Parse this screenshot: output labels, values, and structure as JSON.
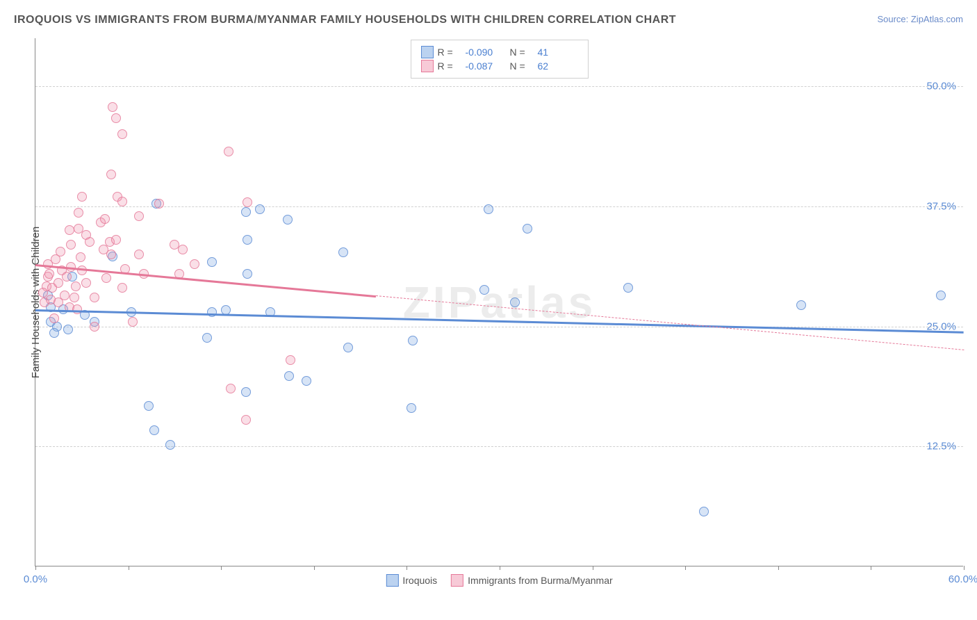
{
  "title": "IROQUOIS VS IMMIGRANTS FROM BURMA/MYANMAR FAMILY HOUSEHOLDS WITH CHILDREN CORRELATION CHART",
  "source": "Source: ZipAtlas.com",
  "watermark": "ZIPatlas",
  "chart": {
    "type": "scatter",
    "background_color": "#ffffff",
    "grid_color": "#d0d0d0",
    "y_axis_title": "Family Households with Children",
    "xlim": [
      0,
      60
    ],
    "ylim": [
      0,
      55
    ],
    "y_ticks": [
      12.5,
      25.0,
      37.5,
      50.0
    ],
    "y_tick_labels": [
      "12.5%",
      "25.0%",
      "37.5%",
      "50.0%"
    ],
    "x_ticks": [
      0,
      6,
      12,
      18,
      24,
      30,
      36,
      42,
      48,
      54,
      60
    ],
    "x_min_label": "0.0%",
    "x_max_label": "60.0%",
    "colors": {
      "blue_fill": "rgba(120,165,225,0.35)",
      "blue_stroke": "#5b8bd4",
      "pink_fill": "rgba(240,150,175,0.35)",
      "pink_stroke": "#e57898",
      "text_blue": "#4a7fd0"
    },
    "legend_top": {
      "rows": [
        {
          "swatch": "blue",
          "r_label": "R =",
          "r_value": "-0.090",
          "n_label": "N =",
          "n_value": "41"
        },
        {
          "swatch": "pink",
          "r_label": "R =",
          "r_value": "-0.087",
          "n_label": "N =",
          "n_value": "62"
        }
      ]
    },
    "legend_bottom": [
      {
        "swatch": "blue",
        "label": "Iroquois"
      },
      {
        "swatch": "pink",
        "label": "Immigrants from Burma/Myanmar"
      }
    ],
    "series": [
      {
        "name": "Iroquois",
        "color": "blue",
        "trend": {
          "x1": 0,
          "y1": 26.8,
          "x2": 60,
          "y2": 24.5,
          "solid_until_x": 60
        },
        "points": [
          [
            1,
            25.5
          ],
          [
            1.4,
            25
          ],
          [
            1,
            27
          ],
          [
            1.8,
            26.8
          ],
          [
            2.4,
            30.2
          ],
          [
            3.2,
            26.2
          ],
          [
            3.8,
            25.5
          ],
          [
            0.8,
            28.2
          ],
          [
            1.2,
            24.3
          ],
          [
            2.1,
            24.7
          ],
          [
            5,
            32.3
          ],
          [
            6.2,
            26.5
          ],
          [
            7.8,
            37.8
          ],
          [
            7.7,
            14.2
          ],
          [
            7.3,
            16.7
          ],
          [
            8.7,
            12.7
          ],
          [
            11.1,
            23.8
          ],
          [
            11.4,
            26.5
          ],
          [
            11.4,
            31.7
          ],
          [
            12.3,
            26.7
          ],
          [
            13.6,
            36.9
          ],
          [
            13.7,
            34.0
          ],
          [
            13.7,
            30.5
          ],
          [
            13.6,
            18.2
          ],
          [
            14.5,
            37.2
          ],
          [
            15.2,
            26.5
          ],
          [
            16.3,
            36.1
          ],
          [
            16.4,
            19.8
          ],
          [
            17.5,
            19.3
          ],
          [
            19.9,
            32.7
          ],
          [
            20.2,
            22.8
          ],
          [
            24.4,
            23.5
          ],
          [
            24.3,
            16.5
          ],
          [
            29.0,
            28.8
          ],
          [
            29.3,
            37.2
          ],
          [
            31.8,
            35.2
          ],
          [
            31.0,
            27.5
          ],
          [
            38.3,
            29.0
          ],
          [
            43.2,
            5.7
          ],
          [
            49.5,
            27.2
          ],
          [
            58.5,
            28.2
          ]
        ]
      },
      {
        "name": "Immigrants from Burma/Myanmar",
        "color": "pink",
        "trend": {
          "x1": 0,
          "y1": 31.5,
          "x2": 60,
          "y2": 22.6,
          "solid_until_x": 22
        },
        "points": [
          [
            0.6,
            27.5
          ],
          [
            0.7,
            29.2
          ],
          [
            0.8,
            30.2
          ],
          [
            0.5,
            28.5
          ],
          [
            1.0,
            27.8
          ],
          [
            1.1,
            29.0
          ],
          [
            0.9,
            30.5
          ],
          [
            1.3,
            32.0
          ],
          [
            0.8,
            31.5
          ],
          [
            1.5,
            29.5
          ],
          [
            1.5,
            27.5
          ],
          [
            1.2,
            25.8
          ],
          [
            1.7,
            30.8
          ],
          [
            1.6,
            32.8
          ],
          [
            1.9,
            28.2
          ],
          [
            2.0,
            30.2
          ],
          [
            2.2,
            27.0
          ],
          [
            2.2,
            35.0
          ],
          [
            2.3,
            33.5
          ],
          [
            2.3,
            31.2
          ],
          [
            2.6,
            29.2
          ],
          [
            2.5,
            28.0
          ],
          [
            2.7,
            26.8
          ],
          [
            2.8,
            35.2
          ],
          [
            2.8,
            36.8
          ],
          [
            2.9,
            32.2
          ],
          [
            3.0,
            30.8
          ],
          [
            3.0,
            38.5
          ],
          [
            3.3,
            34.5
          ],
          [
            3.3,
            29.5
          ],
          [
            3.5,
            33.8
          ],
          [
            3.8,
            28.0
          ],
          [
            3.8,
            25.0
          ],
          [
            4.2,
            35.8
          ],
          [
            4.4,
            33.0
          ],
          [
            4.5,
            36.2
          ],
          [
            4.6,
            30.0
          ],
          [
            4.9,
            40.8
          ],
          [
            4.9,
            32.5
          ],
          [
            4.8,
            33.8
          ],
          [
            5.0,
            47.8
          ],
          [
            5.2,
            46.7
          ],
          [
            5.2,
            34.0
          ],
          [
            5.3,
            38.5
          ],
          [
            5.6,
            45.0
          ],
          [
            5.6,
            38.0
          ],
          [
            5.8,
            31.0
          ],
          [
            5.6,
            29.0
          ],
          [
            6.3,
            25.5
          ],
          [
            6.7,
            32.5
          ],
          [
            6.7,
            36.5
          ],
          [
            7.0,
            30.5
          ],
          [
            8.0,
            37.8
          ],
          [
            9.0,
            33.5
          ],
          [
            9.3,
            30.5
          ],
          [
            9.5,
            33.0
          ],
          [
            10.3,
            31.5
          ],
          [
            12.5,
            43.2
          ],
          [
            12.6,
            18.5
          ],
          [
            13.6,
            15.3
          ],
          [
            13.7,
            37.9
          ],
          [
            16.5,
            21.5
          ]
        ]
      }
    ]
  }
}
